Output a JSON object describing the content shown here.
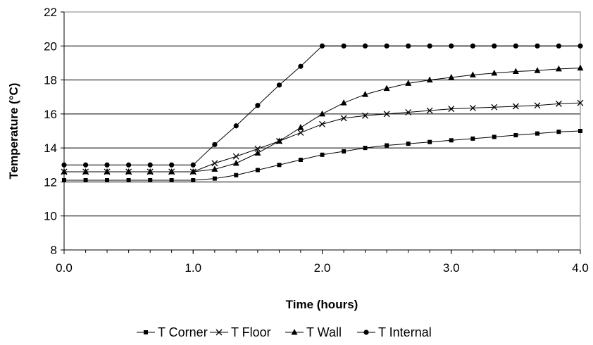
{
  "chart_data": {
    "type": "line",
    "xlabel": "Time (hours)",
    "ylabel": "Temperature (°C)",
    "xlim": [
      0,
      4
    ],
    "ylim": [
      8,
      22
    ],
    "x_ticks": [
      "0.0",
      "1.0",
      "2.0",
      "3.0",
      "4.0"
    ],
    "y_ticks": [
      "8",
      "10",
      "12",
      "14",
      "16",
      "18",
      "20",
      "22"
    ],
    "grid": "horizontal",
    "legend_position": "bottom",
    "x": [
      0.0,
      0.167,
      0.333,
      0.5,
      0.667,
      0.833,
      1.0,
      1.167,
      1.333,
      1.5,
      1.667,
      1.833,
      2.0,
      2.167,
      2.333,
      2.5,
      2.667,
      2.833,
      3.0,
      3.167,
      3.333,
      3.5,
      3.667,
      3.833,
      4.0
    ],
    "series": [
      {
        "name": "T Corner",
        "marker": "square",
        "values": [
          12.1,
          12.1,
          12.1,
          12.1,
          12.1,
          12.1,
          12.1,
          12.2,
          12.4,
          12.7,
          13.0,
          13.3,
          13.6,
          13.8,
          14.0,
          14.15,
          14.25,
          14.35,
          14.45,
          14.55,
          14.65,
          14.75,
          14.85,
          14.95,
          15.0
        ]
      },
      {
        "name": "T Floor",
        "marker": "x",
        "values": [
          12.6,
          12.6,
          12.6,
          12.6,
          12.6,
          12.6,
          12.6,
          13.1,
          13.5,
          13.95,
          14.4,
          14.9,
          15.4,
          15.75,
          15.9,
          16.0,
          16.1,
          16.2,
          16.3,
          16.35,
          16.4,
          16.45,
          16.5,
          16.6,
          16.65
        ]
      },
      {
        "name": "T Wall",
        "marker": "triangle",
        "values": [
          12.6,
          12.6,
          12.6,
          12.6,
          12.6,
          12.6,
          12.6,
          12.75,
          13.1,
          13.7,
          14.4,
          15.2,
          16.0,
          16.65,
          17.15,
          17.5,
          17.8,
          18.0,
          18.15,
          18.3,
          18.4,
          18.5,
          18.55,
          18.65,
          18.7
        ]
      },
      {
        "name": "T Internal",
        "marker": "circle",
        "values": [
          13.0,
          13.0,
          13.0,
          13.0,
          13.0,
          13.0,
          13.0,
          14.2,
          15.3,
          16.5,
          17.7,
          18.8,
          20.0,
          20.0,
          20.0,
          20.0,
          20.0,
          20.0,
          20.0,
          20.0,
          20.0,
          20.0,
          20.0,
          20.0,
          20.0
        ]
      }
    ]
  }
}
